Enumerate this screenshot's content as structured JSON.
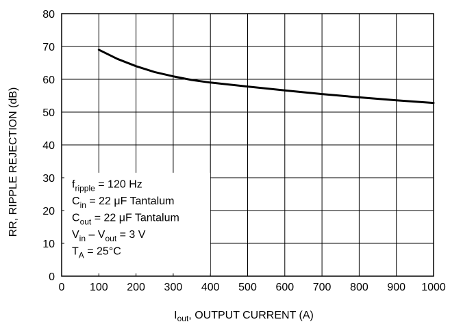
{
  "chart_data": {
    "type": "line",
    "xlabel": {
      "main": "I",
      "sub": "out",
      "rest": ", OUTPUT CURRENT (A)"
    },
    "ylabel": "RR, RIPPLE REJECTION (dB)",
    "xlim": [
      0,
      1000
    ],
    "ylim": [
      0,
      80
    ],
    "xticks": [
      "0",
      "100",
      "200",
      "300",
      "400",
      "500",
      "600",
      "700",
      "800",
      "900",
      "1000"
    ],
    "yticks": [
      "0",
      "10",
      "20",
      "30",
      "40",
      "50",
      "60",
      "70",
      "80"
    ],
    "grid": true,
    "series": [
      {
        "x": [
          100,
          150,
          200,
          250,
          300,
          350,
          400,
          500,
          600,
          700,
          800,
          900,
          1000
        ],
        "y": [
          69,
          66.2,
          64,
          62.2,
          60.9,
          59.8,
          59,
          57.8,
          56.6,
          55.5,
          54.5,
          53.6,
          52.8
        ]
      }
    ],
    "annotation": [
      {
        "a": "f",
        "a_sub": "ripple",
        "b": " = 120 Hz"
      },
      {
        "a": "C",
        "a_sub": "in",
        "b": " = 22 μF Tantalum"
      },
      {
        "a": "C",
        "a_sub": "out",
        "b": " = 22 μF Tantalum"
      },
      {
        "a": "V",
        "a_sub": "in",
        "b": " – V",
        "b_sub": "out",
        "c": " = 3 V"
      },
      {
        "a": "T",
        "a_sub": "A",
        "b": " = 25°C"
      }
    ],
    "colors": {
      "line": "#000000",
      "grid": "#000000",
      "background": "#ffffff"
    }
  }
}
